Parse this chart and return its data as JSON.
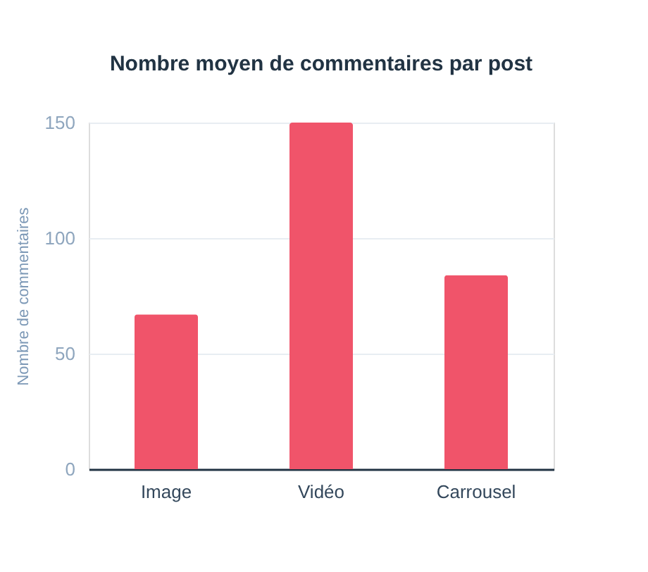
{
  "chart_data": {
    "type": "bar",
    "title": "Nombre moyen de commentaires par post",
    "ylabel": "Nombre de commentaires",
    "categories": [
      "Image",
      "Vidéo",
      "Carrousel"
    ],
    "values": [
      67,
      150,
      84
    ],
    "color": "#f0546a",
    "ylim": [
      0,
      150
    ],
    "yticks": [
      0,
      50,
      100,
      150
    ],
    "grid": "y"
  }
}
